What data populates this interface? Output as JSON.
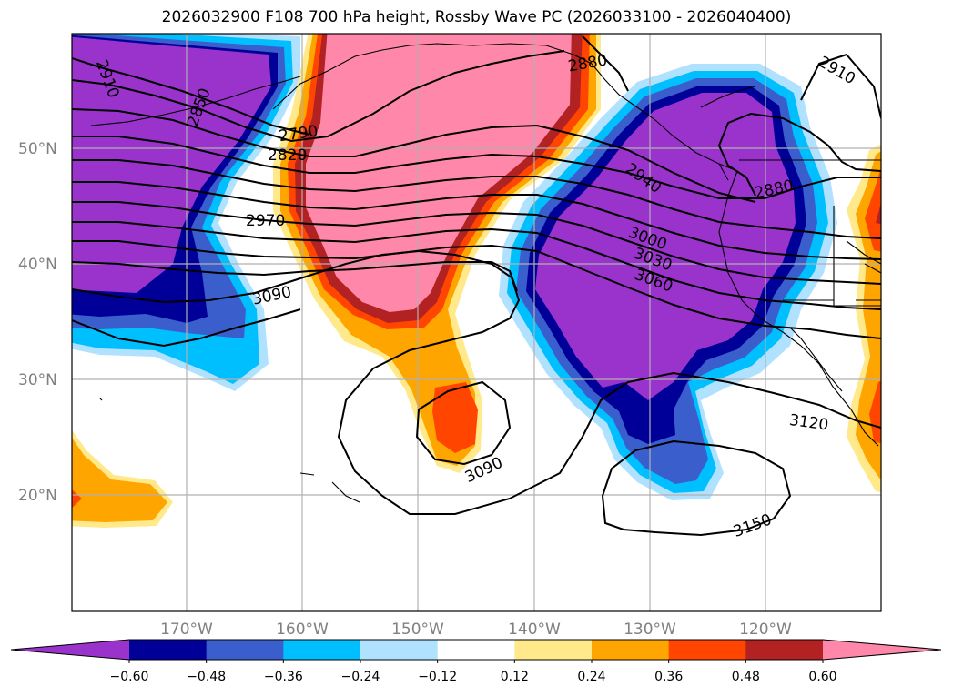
{
  "title": "2026032900 F108 700 hPa height, Rossby Wave PC (2026033100 - 2026040400)",
  "lat_labels": [
    "50°N",
    "40°N",
    "30°N",
    "20°N"
  ],
  "lon_labels": [
    "170°W",
    "160°W",
    "150°W",
    "140°W",
    "130°W",
    "120°W"
  ],
  "contour_labels": [
    "2910",
    "2850",
    "2790",
    "2820",
    "2970",
    "3090",
    "2880",
    "2940",
    "3000",
    "3030",
    "3060",
    "2910",
    "3120",
    "3090",
    "3150",
    "2880"
  ],
  "colorbar": {
    "ticks": [
      "−0.60",
      "−0.48",
      "−0.36",
      "−0.24",
      "−0.12",
      "0.12",
      "0.24",
      "0.36",
      "0.48",
      "0.60"
    ],
    "colors": [
      "#9933cc",
      "#000099",
      "#3a5fcd",
      "#00bfff",
      "#b0e2ff",
      "#ffffff",
      "#ffe98a",
      "#ffa500",
      "#ff4500",
      "#b22222",
      "#ff88aa"
    ]
  },
  "map_values": {
    "lon_range": [
      -180,
      -110
    ],
    "lat_range": [
      10,
      60
    ]
  }
}
